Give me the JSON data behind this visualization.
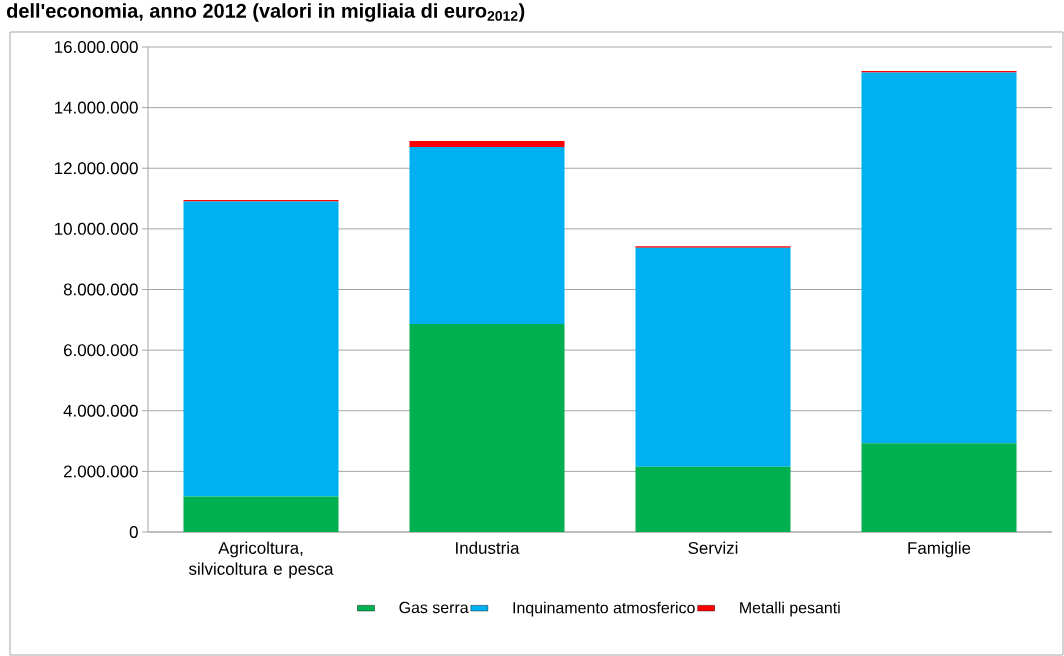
{
  "chart_data": {
    "type": "bar",
    "stacked": true,
    "title": "dell'economia, anno 2012 (valori in migliaia di euro$_{2012}$)",
    "categories": [
      "Agricoltura, silvicoltura e pesca",
      "Industria",
      "Servizi",
      "Famiglie"
    ],
    "series": [
      {
        "name": "Gas serra",
        "color": "#00b050",
        "values": [
          1170000,
          6860000,
          2150000,
          2930000
        ]
      },
      {
        "name": "Inquinamento atmosferico",
        "color": "#00b0f0",
        "values": [
          9730000,
          5840000,
          7230000,
          12230000
        ]
      },
      {
        "name": "Metalli pesanti",
        "color": "#ff0000",
        "values": [
          50000,
          200000,
          50000,
          50000
        ]
      }
    ],
    "ylim": [
      0,
      16000000
    ],
    "yticks": [
      {
        "value": 0,
        "label": "0"
      },
      {
        "value": 2000000,
        "label": "2.000.000"
      },
      {
        "value": 4000000,
        "label": "4.000.000"
      },
      {
        "value": 6000000,
        "label": "6.000.000"
      },
      {
        "value": 8000000,
        "label": "8.000.000"
      },
      {
        "value": 10000000,
        "label": "10.000.000"
      },
      {
        "value": 12000000,
        "label": "12.000.000"
      },
      {
        "value": 14000000,
        "label": "14.000.000"
      },
      {
        "value": 16000000,
        "label": "16.000.000"
      }
    ],
    "grid": "y",
    "legend": "bottom"
  }
}
